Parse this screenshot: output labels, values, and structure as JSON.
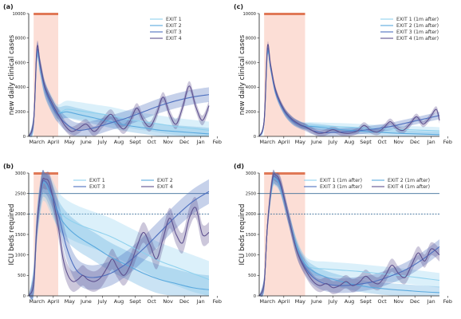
{
  "colors": {
    "exit1": "#8fd1ee",
    "exit2": "#5aa9de",
    "exit3": "#4d6fbf",
    "exit4": "#5f5290",
    "lockdown_shade": "#fbd8cf",
    "lockdown_bar": "#e07856",
    "capacity_line": "#3b6e99"
  },
  "chart_data": [
    {
      "panel": "(a)",
      "type": "line",
      "title": "",
      "ylabel": "new daily clinical cases",
      "xlabel": "",
      "x_ticks": [
        "March",
        "April",
        "May",
        "June",
        "July",
        "Aug",
        "Sept",
        "Oct",
        "Nov",
        "Dec",
        "Jan",
        "Feb"
      ],
      "xlim": [
        0,
        11
      ],
      "ylim": [
        0,
        10000
      ],
      "y_ticks": [
        "0",
        "2000",
        "4000",
        "6000",
        "8000",
        "10000"
      ],
      "y_tick_values": [
        0,
        2000,
        4000,
        6000,
        8000,
        10000
      ],
      "lockdown": [
        0.3,
        1.8
      ],
      "capacity_lines": [],
      "legend": {
        "placement": "top-right",
        "columns": 1
      },
      "series": [
        {
          "name": "EXIT 1",
          "color_key": "exit1",
          "band": 700,
          "x": [
            0,
            0.3,
            0.5,
            0.7,
            1.0,
            1.5,
            1.8,
            2.3,
            3,
            4,
            5,
            6,
            7,
            8,
            9,
            10,
            11
          ],
          "y": [
            0,
            1200,
            6700,
            5600,
            3800,
            2400,
            1900,
            2200,
            2100,
            1900,
            1700,
            1400,
            1200,
            1000,
            800,
            650,
            500
          ]
        },
        {
          "name": "EXIT 2",
          "color_key": "exit2",
          "band": 500,
          "x": [
            0,
            0.3,
            0.5,
            0.7,
            1.0,
            1.5,
            1.8,
            2.3,
            3,
            4,
            5,
            6,
            7,
            8,
            9,
            10,
            11
          ],
          "y": [
            0,
            1200,
            6700,
            5600,
            3800,
            2400,
            1900,
            2000,
            1800,
            1500,
            1200,
            900,
            700,
            500,
            400,
            300,
            200
          ]
        },
        {
          "name": "EXIT 3",
          "color_key": "exit3",
          "band": 600,
          "x": [
            0,
            0.3,
            0.5,
            0.7,
            1.0,
            1.5,
            1.8,
            2.3,
            3,
            4,
            5,
            6,
            7,
            8,
            9,
            10,
            11
          ],
          "y": [
            0,
            1200,
            6900,
            5700,
            3800,
            2300,
            1700,
            1000,
            500,
            700,
            1100,
            1500,
            2000,
            2500,
            2900,
            3200,
            3400
          ]
        },
        {
          "name": "EXIT 4",
          "color_key": "exit4",
          "band": 400,
          "x": [
            0,
            0.3,
            0.5,
            0.7,
            1.0,
            1.5,
            1.8,
            2.2,
            2.6,
            3.0,
            3.5,
            4.0,
            4.5,
            5.0,
            5.4,
            5.8,
            6.2,
            6.6,
            7.0,
            7.4,
            7.8,
            8.2,
            8.6,
            9.0,
            9.4,
            9.8,
            10.2,
            10.6,
            11
          ],
          "y": [
            0,
            1300,
            7200,
            5900,
            4000,
            2500,
            1800,
            900,
            400,
            600,
            1000,
            400,
            1100,
            1800,
            1100,
            600,
            1300,
            2300,
            1300,
            800,
            1800,
            3200,
            1800,
            1000,
            2400,
            4100,
            2400,
            1300,
            2500
          ]
        }
      ]
    },
    {
      "panel": "(c)",
      "type": "line",
      "title": "",
      "ylabel": "new daily clinical cases",
      "xlabel": "",
      "x_ticks": [
        "March",
        "April",
        "May",
        "June",
        "July",
        "Aug",
        "Sept",
        "Oct",
        "Nov",
        "Dec",
        "Jan",
        "Feb"
      ],
      "xlim": [
        0,
        11
      ],
      "ylim": [
        0,
        10000
      ],
      "y_ticks": [
        "0",
        "2000",
        "4000",
        "6000",
        "8000",
        "10000"
      ],
      "y_tick_values": [
        0,
        2000,
        4000,
        6000,
        8000,
        10000
      ],
      "lockdown": [
        0.3,
        2.8
      ],
      "capacity_lines": [],
      "legend": {
        "placement": "top-right",
        "columns": 1
      },
      "series": [
        {
          "name": "EXIT 1  (1m after)",
          "color_key": "exit1",
          "band": 300,
          "x": [
            0,
            0.3,
            0.5,
            0.7,
            1.0,
            1.5,
            2.0,
            2.5,
            2.8,
            3.3,
            4,
            5,
            6,
            7,
            8,
            9,
            10,
            11
          ],
          "y": [
            0,
            1200,
            6800,
            5500,
            3600,
            2100,
            1300,
            950,
            850,
            850,
            820,
            780,
            720,
            650,
            600,
            550,
            500,
            450
          ]
        },
        {
          "name": "EXIT 2  (1m after)",
          "color_key": "exit2",
          "band": 250,
          "x": [
            0,
            0.3,
            0.5,
            0.7,
            1.0,
            1.5,
            2.0,
            2.5,
            2.8,
            3.3,
            4,
            5,
            6,
            7,
            8,
            9,
            10,
            11
          ],
          "y": [
            0,
            1200,
            6800,
            5500,
            3600,
            2100,
            1300,
            950,
            850,
            800,
            700,
            550,
            450,
            350,
            280,
            220,
            180,
            140
          ]
        },
        {
          "name": "EXIT 3  (1m after)",
          "color_key": "exit3",
          "band": 300,
          "x": [
            0,
            0.3,
            0.5,
            0.7,
            1.0,
            1.5,
            2.0,
            2.5,
            2.8,
            3.3,
            4,
            5,
            6,
            7,
            8,
            9,
            10,
            11
          ],
          "y": [
            0,
            1200,
            7000,
            5600,
            3600,
            2100,
            1300,
            900,
            750,
            450,
            300,
            350,
            450,
            600,
            800,
            1100,
            1400,
            1700
          ]
        },
        {
          "name": "EXIT 4  (1m after)",
          "color_key": "exit4",
          "band": 250,
          "x": [
            0,
            0.3,
            0.5,
            0.7,
            1.0,
            1.5,
            2.0,
            2.5,
            2.8,
            3.2,
            3.6,
            4.0,
            4.5,
            5.0,
            5.5,
            6.0,
            6.4,
            6.8,
            7.2,
            7.6,
            8.0,
            8.4,
            8.8,
            9.2,
            9.6,
            10.0,
            10.4,
            10.8,
            11
          ],
          "y": [
            0,
            1300,
            7300,
            5800,
            3800,
            2200,
            1400,
            950,
            800,
            500,
            250,
            300,
            550,
            300,
            250,
            450,
            900,
            500,
            350,
            700,
            1200,
            650,
            500,
            1000,
            1600,
            1000,
            1500,
            2200,
            1300
          ]
        }
      ]
    },
    {
      "panel": "(b)",
      "type": "line",
      "title": "",
      "ylabel": "ICU beds required",
      "xlabel": "",
      "x_ticks": [
        "March",
        "April",
        "May",
        "June",
        "July",
        "Aug",
        "Sept",
        "Oct",
        "Nov",
        "Dec",
        "Jan",
        "Feb"
      ],
      "xlim": [
        0,
        11
      ],
      "ylim": [
        0,
        3000
      ],
      "y_ticks": [
        "0",
        "500",
        "1000",
        "1500",
        "2000",
        "2500",
        "3000"
      ],
      "y_tick_values": [
        0,
        500,
        1000,
        1500,
        2000,
        2500,
        3000
      ],
      "lockdown": [
        0.3,
        1.8
      ],
      "capacity_lines": [
        {
          "value": 2500,
          "style": "solid"
        },
        {
          "value": 2000,
          "style": "dashed"
        }
      ],
      "legend": {
        "placement": "top-right",
        "columns": 2
      },
      "series": [
        {
          "name": "EXIT 1",
          "color_key": "exit1",
          "band": 450,
          "x": [
            0,
            0.3,
            0.5,
            0.8,
            1.0,
            1.3,
            1.8,
            2.3,
            3,
            4,
            5,
            6,
            7,
            8,
            9,
            10,
            11
          ],
          "y": [
            0,
            300,
            1700,
            2650,
            2750,
            2500,
            2100,
            1900,
            1750,
            1600,
            1450,
            1250,
            1050,
            850,
            700,
            550,
            400
          ]
        },
        {
          "name": "EXIT 2",
          "color_key": "exit2",
          "band": 350,
          "x": [
            0,
            0.3,
            0.5,
            0.8,
            1.0,
            1.3,
            1.8,
            2.3,
            3,
            4,
            5,
            6,
            7,
            8,
            9,
            10,
            11
          ],
          "y": [
            0,
            300,
            1700,
            2650,
            2750,
            2500,
            2000,
            1700,
            1450,
            1200,
            950,
            750,
            550,
            400,
            300,
            200,
            150
          ]
        },
        {
          "name": "EXIT 3",
          "color_key": "exit3",
          "band": 300,
          "x": [
            0,
            0.3,
            0.5,
            0.8,
            1.0,
            1.3,
            1.8,
            2.3,
            2.8,
            3.3,
            4,
            5,
            6,
            7,
            8,
            9,
            10,
            11
          ],
          "y": [
            0,
            300,
            1700,
            2700,
            2800,
            2600,
            2000,
            1200,
            700,
            500,
            450,
            550,
            800,
            1150,
            1550,
            1950,
            2300,
            2550
          ]
        },
        {
          "name": "EXIT 4",
          "color_key": "exit4",
          "band": 250,
          "x": [
            0,
            0.3,
            0.5,
            0.8,
            1.0,
            1.3,
            1.8,
            2.1,
            2.4,
            2.7,
            3.0,
            3.3,
            3.6,
            4.0,
            4.4,
            4.8,
            5.1,
            5.4,
            5.8,
            6.2,
            6.6,
            7.0,
            7.4,
            7.8,
            8.2,
            8.6,
            9.0,
            9.4,
            9.8,
            10.2,
            10.6,
            11
          ],
          "y": [
            0,
            300,
            1700,
            2750,
            2850,
            2700,
            1700,
            900,
            500,
            350,
            400,
            500,
            400,
            350,
            450,
            700,
            900,
            700,
            500,
            750,
            1200,
            1550,
            1250,
            900,
            1400,
            1900,
            1500,
            1300,
            1900,
            2150,
            1500,
            1550
          ]
        }
      ]
    },
    {
      "panel": "(d)",
      "type": "line",
      "title": "",
      "ylabel": "ICU beds required",
      "xlabel": "",
      "x_ticks": [
        "March",
        "April",
        "May",
        "June",
        "July",
        "Aug",
        "Sept",
        "Oct",
        "Nov",
        "Dec",
        "Jan",
        "Feb"
      ],
      "xlim": [
        0,
        11
      ],
      "ylim": [
        0,
        3000
      ],
      "y_ticks": [
        "0",
        "500",
        "1000",
        "1500",
        "2000",
        "2500",
        "3000"
      ],
      "y_tick_values": [
        0,
        500,
        1000,
        1500,
        2000,
        2500,
        3000
      ],
      "lockdown": [
        0.3,
        2.8
      ],
      "capacity_lines": [
        {
          "value": 2500,
          "style": "solid"
        },
        {
          "value": 2000,
          "style": "dashed"
        }
      ],
      "legend": {
        "placement": "top-right",
        "columns": 2
      },
      "series": [
        {
          "name": "EXIT 1  (1m after)",
          "color_key": "exit1",
          "band": 180,
          "x": [
            0,
            0.3,
            0.5,
            0.8,
            1.0,
            1.3,
            1.8,
            2.3,
            2.8,
            3.3,
            4,
            5,
            6,
            7,
            8,
            9,
            10,
            11
          ],
          "y": [
            0,
            300,
            1700,
            2750,
            2850,
            2650,
            1900,
            1200,
            800,
            680,
            660,
            630,
            600,
            560,
            520,
            480,
            430,
            380
          ]
        },
        {
          "name": "EXIT 2  (1m after)",
          "color_key": "exit2",
          "band": 150,
          "x": [
            0,
            0.3,
            0.5,
            0.8,
            1.0,
            1.3,
            1.8,
            2.3,
            2.8,
            3.3,
            4,
            5,
            6,
            7,
            8,
            9,
            10,
            11
          ],
          "y": [
            0,
            300,
            1700,
            2750,
            2850,
            2650,
            1900,
            1200,
            780,
            600,
            470,
            350,
            260,
            200,
            160,
            130,
            100,
            80
          ]
        },
        {
          "name": "EXIT 3  (1m after)",
          "color_key": "exit3",
          "band": 180,
          "x": [
            0,
            0.3,
            0.5,
            0.8,
            1.0,
            1.3,
            1.8,
            2.3,
            2.8,
            3.3,
            4,
            5,
            6,
            7,
            8,
            9,
            10,
            11
          ],
          "y": [
            0,
            300,
            1700,
            2800,
            2900,
            2700,
            1900,
            1100,
            700,
            450,
            300,
            250,
            280,
            350,
            480,
            650,
            900,
            1200
          ]
        },
        {
          "name": "EXIT 4  (1m after)",
          "color_key": "exit4",
          "band": 160,
          "x": [
            0,
            0.3,
            0.5,
            0.8,
            1.0,
            1.3,
            1.8,
            2.3,
            2.8,
            3.3,
            3.7,
            4.1,
            4.5,
            4.9,
            5.3,
            5.7,
            6.1,
            6.5,
            6.9,
            7.3,
            7.7,
            8.1,
            8.5,
            8.9,
            9.3,
            9.7,
            10.1,
            10.5,
            11
          ],
          "y": [
            0,
            300,
            1700,
            2850,
            2950,
            2750,
            1900,
            1100,
            650,
            350,
            250,
            300,
            200,
            250,
            350,
            250,
            330,
            480,
            350,
            300,
            500,
            750,
            550,
            450,
            750,
            1050,
            850,
            1150,
            1000
          ]
        }
      ]
    }
  ]
}
